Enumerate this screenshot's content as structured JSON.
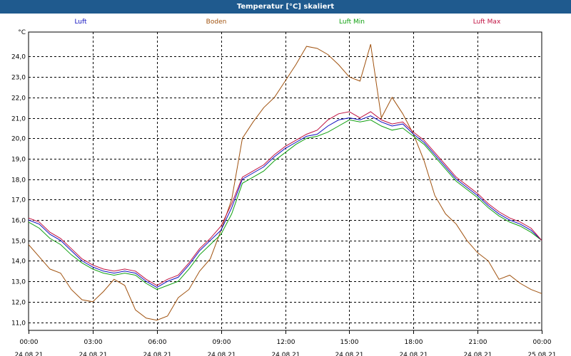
{
  "window": {
    "title": "Temperatur [°C] skaliert",
    "titlebar_color": "#1f5a8e"
  },
  "chart_data": {
    "type": "line",
    "title": "Temperatur [°C] skaliert",
    "ylabel": "°C",
    "xlabel": "",
    "ylim": [
      10.6,
      25.2
    ],
    "xlim": [
      0,
      24
    ],
    "y_ticks": [
      "11,0",
      "12,0",
      "13,0",
      "14,0",
      "15,0",
      "16,0",
      "17,0",
      "18,0",
      "19,0",
      "20,0",
      "21,0",
      "22,0",
      "23,0",
      "24,0"
    ],
    "y_tick_values": [
      11,
      12,
      13,
      14,
      15,
      16,
      17,
      18,
      19,
      20,
      21,
      22,
      23,
      24
    ],
    "x_tick_hours": [
      0,
      3,
      6,
      9,
      12,
      15,
      18,
      21,
      24
    ],
    "x_ticks": [
      {
        "time": "00:00",
        "date": "24.08.21"
      },
      {
        "time": "03:00",
        "date": "24.08.21"
      },
      {
        "time": "06:00",
        "date": "24.08.21"
      },
      {
        "time": "09:00",
        "date": "24.08.21"
      },
      {
        "time": "12:00",
        "date": "24.08.21"
      },
      {
        "time": "15:00",
        "date": "24.08.21"
      },
      {
        "time": "18:00",
        "date": "24.08.21"
      },
      {
        "time": "21:00",
        "date": "24.08.21"
      },
      {
        "time": "00:00",
        "date": "25.08.21"
      }
    ],
    "grid": true,
    "legend_position": "top",
    "series": [
      {
        "name": "Luft",
        "color": "#1010c0",
        "x": [
          0,
          0.5,
          1,
          1.5,
          2,
          2.5,
          3,
          3.5,
          4,
          4.5,
          5,
          5.5,
          6,
          6.5,
          7,
          7.5,
          8,
          8.5,
          9,
          9.5,
          10,
          10.5,
          11,
          11.5,
          12,
          12.5,
          13,
          13.5,
          14,
          14.5,
          15,
          15.5,
          16,
          16.5,
          17,
          17.5,
          18,
          18.5,
          19,
          19.5,
          20,
          20.5,
          21,
          21.5,
          22,
          22.5,
          23,
          23.5,
          24
        ],
        "values": [
          16.0,
          15.8,
          15.3,
          15.0,
          14.5,
          14.0,
          13.7,
          13.5,
          13.4,
          13.5,
          13.4,
          13.0,
          12.7,
          13.0,
          13.2,
          13.8,
          14.5,
          15.0,
          15.5,
          16.6,
          18.0,
          18.3,
          18.6,
          19.1,
          19.5,
          19.8,
          20.1,
          20.2,
          20.6,
          20.9,
          21.0,
          20.9,
          21.1,
          20.8,
          20.6,
          20.7,
          20.2,
          19.8,
          19.2,
          18.6,
          18.0,
          17.6,
          17.2,
          16.7,
          16.3,
          16.0,
          15.8,
          15.5,
          15.0
        ]
      },
      {
        "name": "Boden",
        "color": "#a0520f",
        "x": [
          0,
          0.5,
          1,
          1.5,
          2,
          2.5,
          3,
          3.5,
          4,
          4.5,
          5,
          5.5,
          6,
          6.5,
          7,
          7.5,
          8,
          8.5,
          9,
          9.5,
          10,
          10.5,
          11,
          11.5,
          12,
          12.5,
          13,
          13.5,
          14,
          14.5,
          15,
          15.5,
          16,
          16.5,
          17,
          17.5,
          18,
          18.5,
          19,
          19.5,
          20,
          20.5,
          21,
          21.5,
          22,
          22.5,
          23,
          23.5,
          24
        ],
        "values": [
          14.8,
          14.2,
          13.6,
          13.4,
          12.6,
          12.1,
          12.0,
          12.5,
          13.1,
          12.8,
          11.6,
          11.2,
          11.1,
          11.3,
          12.2,
          12.6,
          13.5,
          14.1,
          15.5,
          17.0,
          20.0,
          20.8,
          21.5,
          22.0,
          22.8,
          23.6,
          24.5,
          24.4,
          24.1,
          23.6,
          23.0,
          22.8,
          24.6,
          21.0,
          22.0,
          21.2,
          20.2,
          18.9,
          17.2,
          16.3,
          15.8,
          15.0,
          14.4,
          14.0,
          13.1,
          13.3,
          12.9,
          12.6,
          12.4
        ]
      },
      {
        "name": "Luft Min",
        "color": "#10a010",
        "x": [
          0,
          0.5,
          1,
          1.5,
          2,
          2.5,
          3,
          3.5,
          4,
          4.5,
          5,
          5.5,
          6,
          6.5,
          7,
          7.5,
          8,
          8.5,
          9,
          9.5,
          10,
          10.5,
          11,
          11.5,
          12,
          12.5,
          13,
          13.5,
          14,
          14.5,
          15,
          15.5,
          16,
          16.5,
          17,
          17.5,
          18,
          18.5,
          19,
          19.5,
          20,
          20.5,
          21,
          21.5,
          22,
          22.5,
          23,
          23.5,
          24
        ],
        "values": [
          15.9,
          15.6,
          15.1,
          14.8,
          14.3,
          13.9,
          13.6,
          13.4,
          13.3,
          13.4,
          13.3,
          12.9,
          12.6,
          12.8,
          13.0,
          13.6,
          14.3,
          14.8,
          15.3,
          16.3,
          17.8,
          18.1,
          18.4,
          18.9,
          19.3,
          19.7,
          20.0,
          20.1,
          20.3,
          20.6,
          20.9,
          20.8,
          20.9,
          20.6,
          20.4,
          20.5,
          20.1,
          19.7,
          19.1,
          18.5,
          17.9,
          17.5,
          17.1,
          16.6,
          16.2,
          15.9,
          15.7,
          15.4,
          15.0
        ]
      },
      {
        "name": "Luft Max",
        "color": "#c01040",
        "x": [
          0,
          0.5,
          1,
          1.5,
          2,
          2.5,
          3,
          3.5,
          4,
          4.5,
          5,
          5.5,
          6,
          6.5,
          7,
          7.5,
          8,
          8.5,
          9,
          9.5,
          10,
          10.5,
          11,
          11.5,
          12,
          12.5,
          13,
          13.5,
          14,
          14.5,
          15,
          15.5,
          16,
          16.5,
          17,
          17.5,
          18,
          18.5,
          19,
          19.5,
          20,
          20.5,
          21,
          21.5,
          22,
          22.5,
          23,
          23.5,
          24
        ],
        "values": [
          16.1,
          15.9,
          15.4,
          15.1,
          14.6,
          14.1,
          13.8,
          13.6,
          13.5,
          13.6,
          13.5,
          13.1,
          12.8,
          13.1,
          13.3,
          13.9,
          14.6,
          15.1,
          15.7,
          16.8,
          18.1,
          18.4,
          18.7,
          19.2,
          19.6,
          19.9,
          20.2,
          20.4,
          20.9,
          21.2,
          21.3,
          21.0,
          21.3,
          20.9,
          20.7,
          20.8,
          20.3,
          19.9,
          19.3,
          18.7,
          18.1,
          17.7,
          17.3,
          16.8,
          16.4,
          16.1,
          15.9,
          15.6,
          15.0
        ]
      }
    ]
  }
}
